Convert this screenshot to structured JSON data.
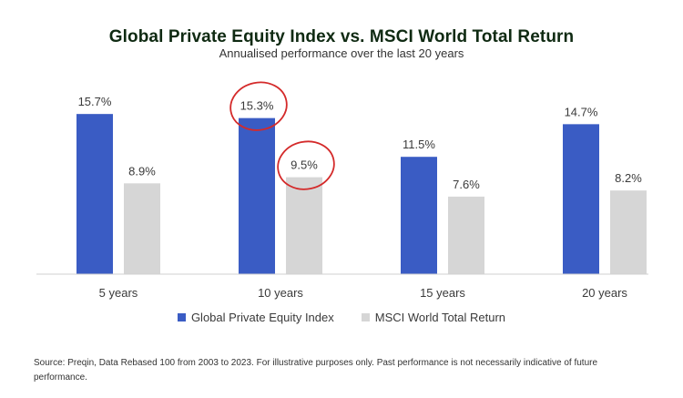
{
  "chart_data": {
    "type": "bar",
    "title": "Global Private Equity Index vs. MSCI World Total Return",
    "subtitle": "Annualised performance over the last 20 years",
    "categories": [
      "5 years",
      "10 years",
      "15 years",
      "20 years"
    ],
    "series": [
      {
        "name": "Global Private Equity Index",
        "values": [
          15.7,
          15.3,
          11.5,
          14.7
        ],
        "labels": [
          "15.7%",
          "15.3%",
          "11.5%",
          "14.7%"
        ],
        "color": "#3a5cc4"
      },
      {
        "name": "MSCI World Total Return",
        "values": [
          8.9,
          9.5,
          7.6,
          8.2
        ],
        "labels": [
          "8.9%",
          "9.5%",
          "7.6%",
          "8.2%"
        ],
        "color": "#d6d6d6"
      }
    ],
    "ylim": [
      0,
      16
    ],
    "grid": false,
    "legend": "bottom-center",
    "annotations": [
      {
        "type": "circle",
        "series": 0,
        "category": 1,
        "color": "#d42a2a"
      },
      {
        "type": "circle",
        "series": 1,
        "category": 1,
        "color": "#d42a2a"
      }
    ]
  },
  "source_note": "Source: Preqin, Data Rebased 100 from 2003 to 2023. For illustrative purposes only. Past performance is not necessarily indicative of future performance."
}
